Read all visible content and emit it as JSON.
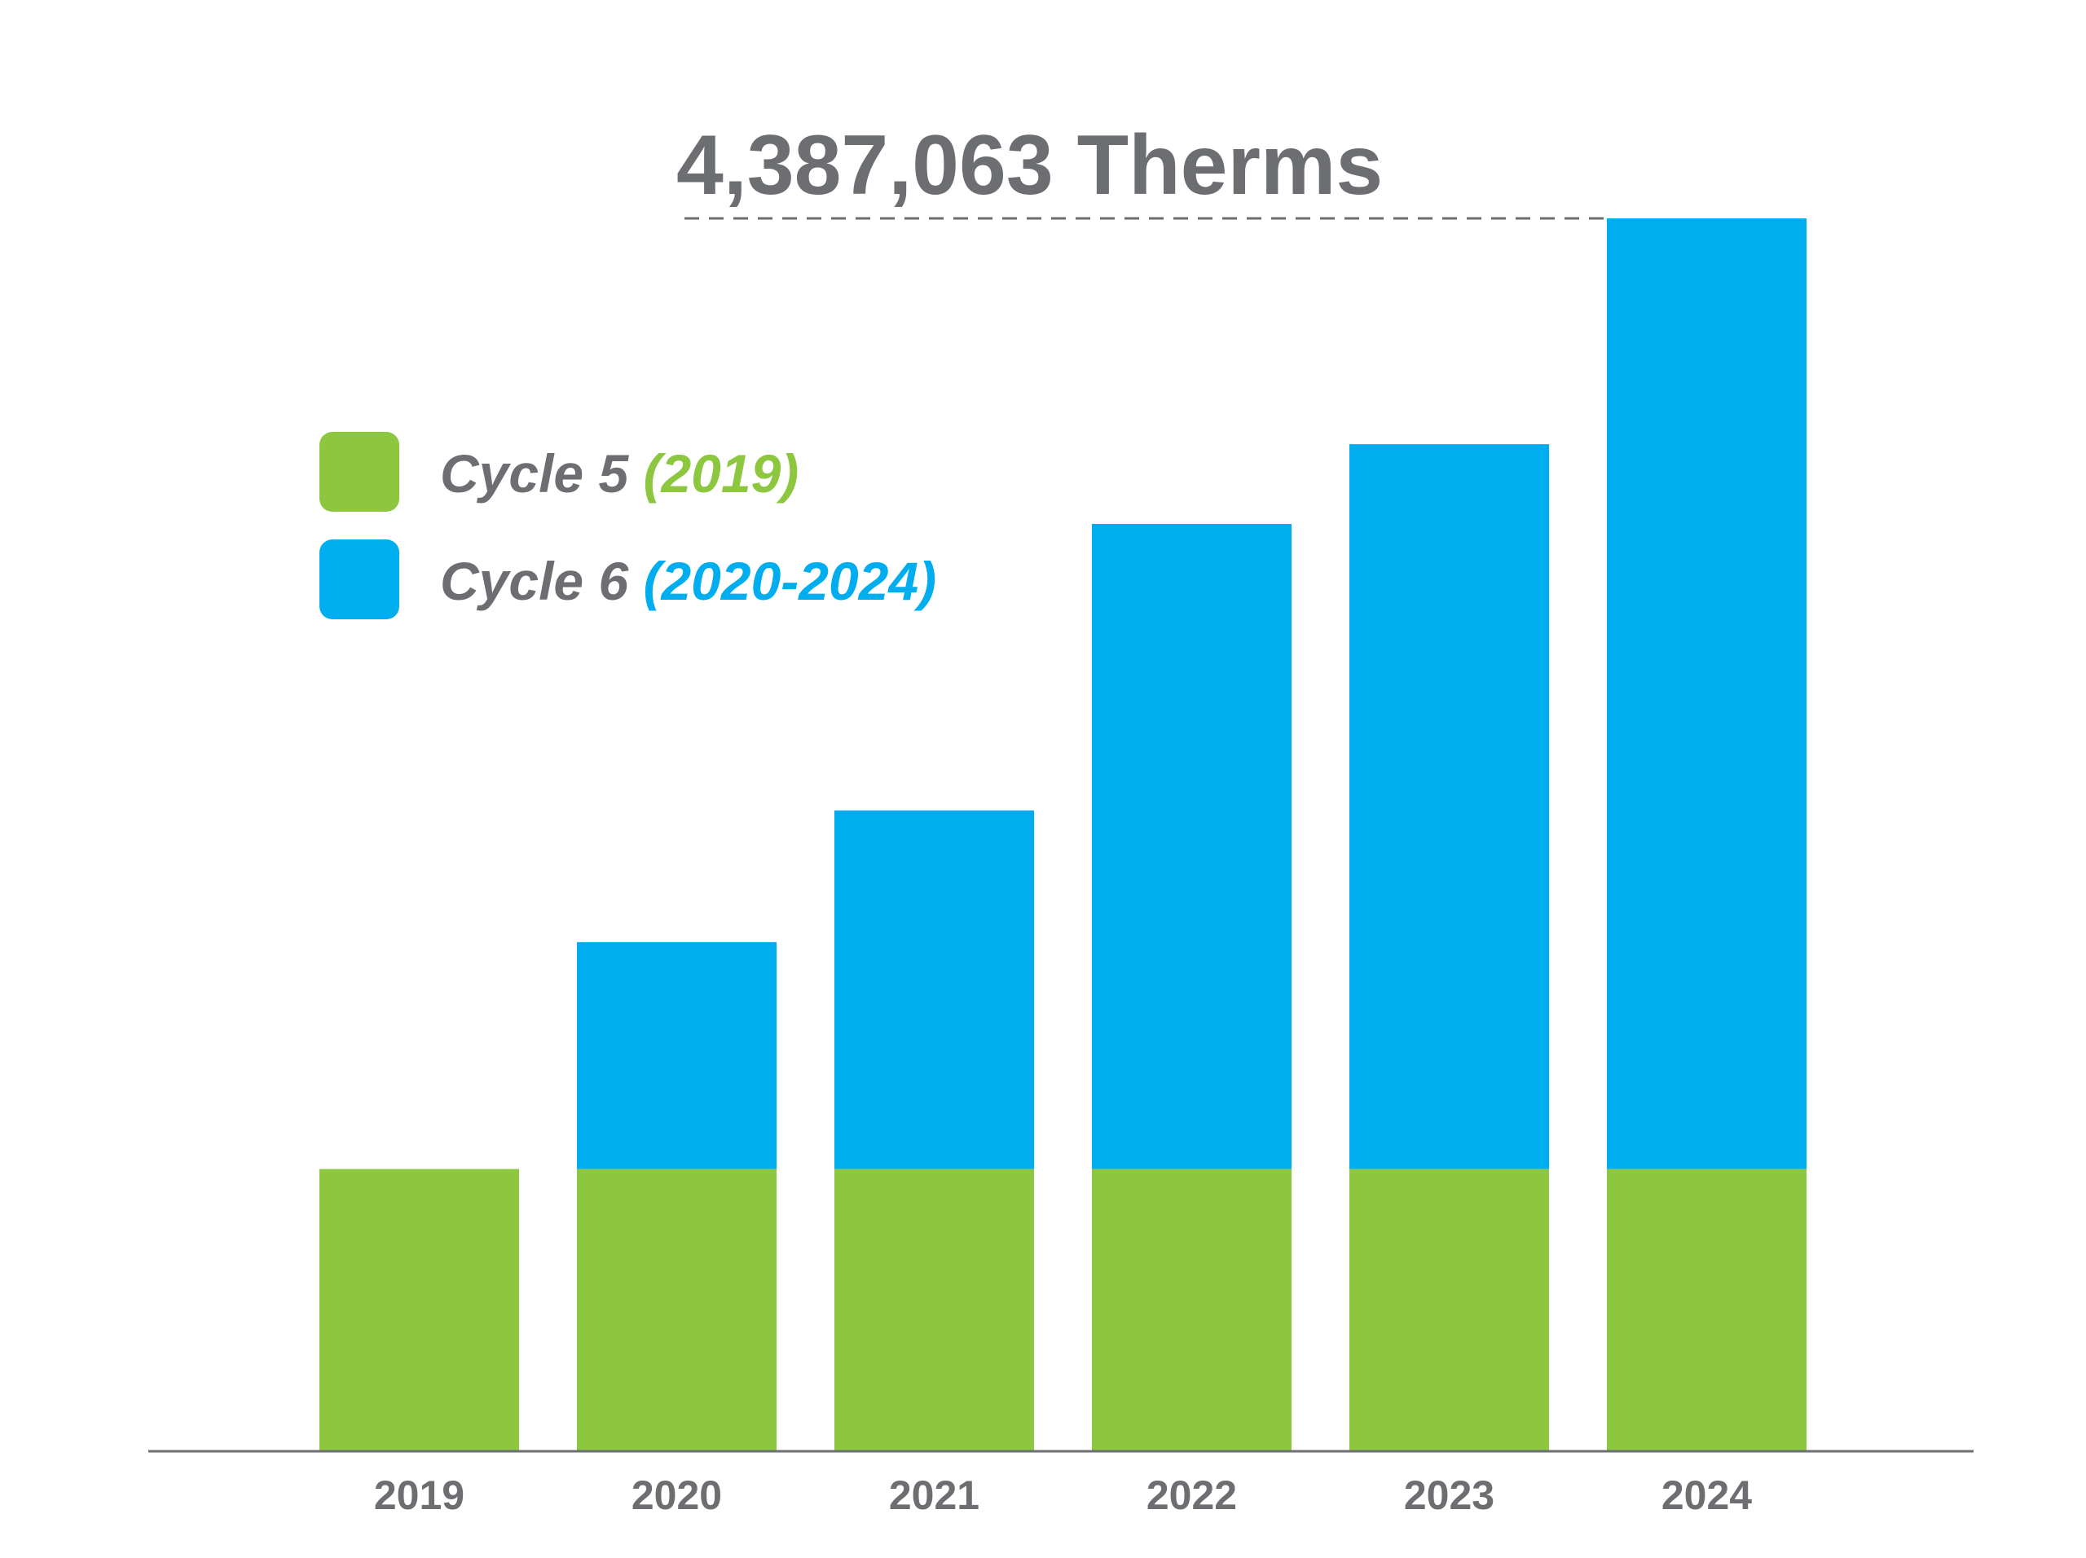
{
  "colors": {
    "cycle5": "#8dc63f",
    "cycle6": "#00aeef",
    "text": "#6d6e71",
    "axis": "#6d6e71",
    "background": "#ffffff"
  },
  "legend": {
    "items": [
      {
        "name": "Cycle 5",
        "years": "(2019)",
        "color": "#8dc63f"
      },
      {
        "name": "Cycle 6",
        "years": "(2020-2024)",
        "color": "#00aeef"
      }
    ]
  },
  "chart_data": {
    "type": "bar",
    "stacked": true,
    "title": "",
    "xlabel": "",
    "ylabel": "",
    "categories": [
      "2019",
      "2020",
      "2021",
      "2022",
      "2023",
      "2024"
    ],
    "series": [
      {
        "name": "Cycle 5 (2019)",
        "color": "#8dc63f",
        "values": [
          1002000,
          1002000,
          1002000,
          1002000,
          1002000,
          1002000
        ]
      },
      {
        "name": "Cycle 6 (2020-2024)",
        "color": "#00aeef",
        "values": [
          0,
          808000,
          1277000,
          2297000,
          2581000,
          3385063
        ]
      }
    ],
    "ylim": [
      0,
      4387063
    ],
    "annotation": {
      "text": "4,387,063 Therms",
      "value": 4387063,
      "category": "2024",
      "line_style": "dashed"
    },
    "grid": false,
    "legend_position": "top-left"
  }
}
